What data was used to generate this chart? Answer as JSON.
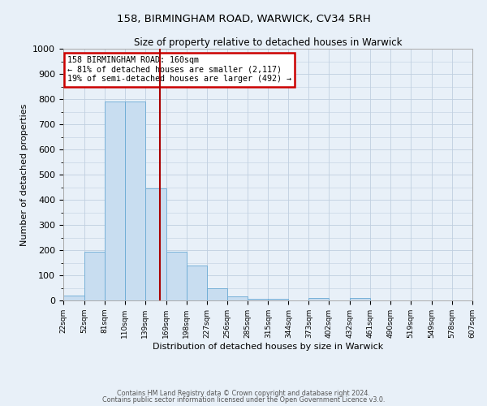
{
  "title": "158, BIRMINGHAM ROAD, WARWICK, CV34 5RH",
  "subtitle": "Size of property relative to detached houses in Warwick",
  "xlabel": "Distribution of detached houses by size in Warwick",
  "ylabel": "Number of detached properties",
  "bar_color": "#c8ddf0",
  "bar_edge_color": "#6aaad4",
  "bg_color": "#e8f0f8",
  "vline_x": 160,
  "vline_color": "#aa0000",
  "annotation_text": "158 BIRMINGHAM ROAD: 160sqm\n← 81% of detached houses are smaller (2,117)\n19% of semi-detached houses are larger (492) →",
  "annotation_box_color": "#ffffff",
  "annotation_box_edge": "#cc0000",
  "ylim": [
    0,
    1000
  ],
  "yticks": [
    0,
    100,
    200,
    300,
    400,
    500,
    600,
    700,
    800,
    900,
    1000
  ],
  "bin_edges": [
    22,
    52,
    81,
    110,
    139,
    169,
    198,
    227,
    256,
    285,
    315,
    344,
    373,
    402,
    432,
    461,
    490,
    519,
    549,
    578,
    607
  ],
  "bin_heights": [
    20,
    195,
    790,
    790,
    445,
    195,
    140,
    50,
    15,
    5,
    5,
    0,
    10,
    0,
    10,
    0,
    0,
    0,
    0,
    0
  ],
  "footer_line1": "Contains HM Land Registry data © Crown copyright and database right 2024.",
  "footer_line2": "Contains public sector information licensed under the Open Government Licence v3.0.",
  "grid_color": "#c0cfe0"
}
